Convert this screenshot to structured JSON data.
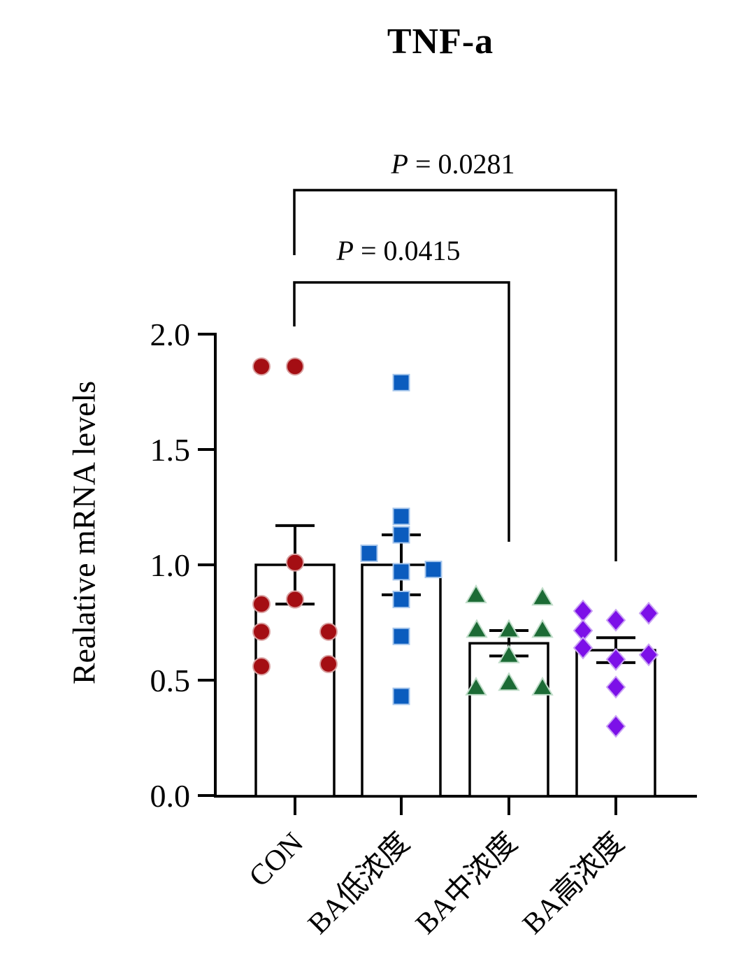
{
  "chart_data": {
    "type": "bar+scatter",
    "title": "TNF-a",
    "ylabel": "Realative mRNA levels",
    "xlabel": "",
    "ylim": [
      0.0,
      2.0
    ],
    "yticks": [
      2.0,
      1.5,
      1.0,
      0.5,
      0.0
    ],
    "ytick_labels": [
      "2.0",
      "1.5",
      "1.0",
      "0.5",
      "0.0"
    ],
    "categories": [
      "CON",
      "BA低浓度",
      "BA中浓度",
      "BA高浓度"
    ],
    "bar_fill": "#ffffff",
    "bar_edge": "#000000",
    "groups": [
      {
        "label": "CON",
        "marker": "circle",
        "color": "#A40E13",
        "edge_color": "#D9A0A0",
        "mean": 1.0,
        "sem": 0.17,
        "points": [
          {
            "dx": -48,
            "v": 1.86
          },
          {
            "dx": 0,
            "v": 1.86
          },
          {
            "dx": 0,
            "v": 1.01
          },
          {
            "dx": 0,
            "v": 0.85
          },
          {
            "dx": -48,
            "v": 0.83
          },
          {
            "dx": -48,
            "v": 0.71
          },
          {
            "dx": 48,
            "v": 0.71
          },
          {
            "dx": 48,
            "v": 0.57
          },
          {
            "dx": -48,
            "v": 0.56
          }
        ]
      },
      {
        "label": "BA低浓度",
        "marker": "square",
        "color": "#0B5CBE",
        "edge_color": "#A6C6EC",
        "mean": 1.0,
        "sem": 0.13,
        "points": [
          {
            "dx": 0,
            "v": 1.79
          },
          {
            "dx": 0,
            "v": 1.21
          },
          {
            "dx": 0,
            "v": 1.13
          },
          {
            "dx": -46,
            "v": 1.05
          },
          {
            "dx": 46,
            "v": 0.98
          },
          {
            "dx": 0,
            "v": 0.97
          },
          {
            "dx": 0,
            "v": 0.85
          },
          {
            "dx": 0,
            "v": 0.69
          },
          {
            "dx": 0,
            "v": 0.43
          }
        ]
      },
      {
        "label": "BA中浓度",
        "marker": "triangle",
        "color": "#1C6B35",
        "edge_color": "#BFDCC8",
        "mean": 0.66,
        "sem": 0.055,
        "points": [
          {
            "dx": -47,
            "v": 0.87
          },
          {
            "dx": 48,
            "v": 0.86
          },
          {
            "dx": -46,
            "v": 0.72
          },
          {
            "dx": 0,
            "v": 0.72
          },
          {
            "dx": 48,
            "v": 0.72
          },
          {
            "dx": 0,
            "v": 0.61
          },
          {
            "dx": 0,
            "v": 0.49
          },
          {
            "dx": -47,
            "v": 0.47
          },
          {
            "dx": 48,
            "v": 0.47
          }
        ]
      },
      {
        "label": "BA高浓度",
        "marker": "diamond",
        "color": "#7C10E8",
        "edge_color": "#C9A2F4",
        "mean": 0.63,
        "sem": 0.054,
        "points": [
          {
            "dx": -47,
            "v": 0.8
          },
          {
            "dx": 47,
            "v": 0.79
          },
          {
            "dx": 0,
            "v": 0.76
          },
          {
            "dx": -47,
            "v": 0.715
          },
          {
            "dx": -47,
            "v": 0.64
          },
          {
            "dx": 47,
            "v": 0.61
          },
          {
            "dx": 0,
            "v": 0.59
          },
          {
            "dx": 0,
            "v": 0.47
          },
          {
            "dx": 0,
            "v": 0.3
          }
        ]
      }
    ],
    "comparisons": [
      {
        "between": [
          "CON",
          "BA高浓度"
        ],
        "p_label": "P = 0.0281"
      },
      {
        "between": [
          "CON",
          "BA中浓度"
        ],
        "p_label": "P = 0.0415"
      }
    ],
    "legend": "none",
    "grid": false
  }
}
